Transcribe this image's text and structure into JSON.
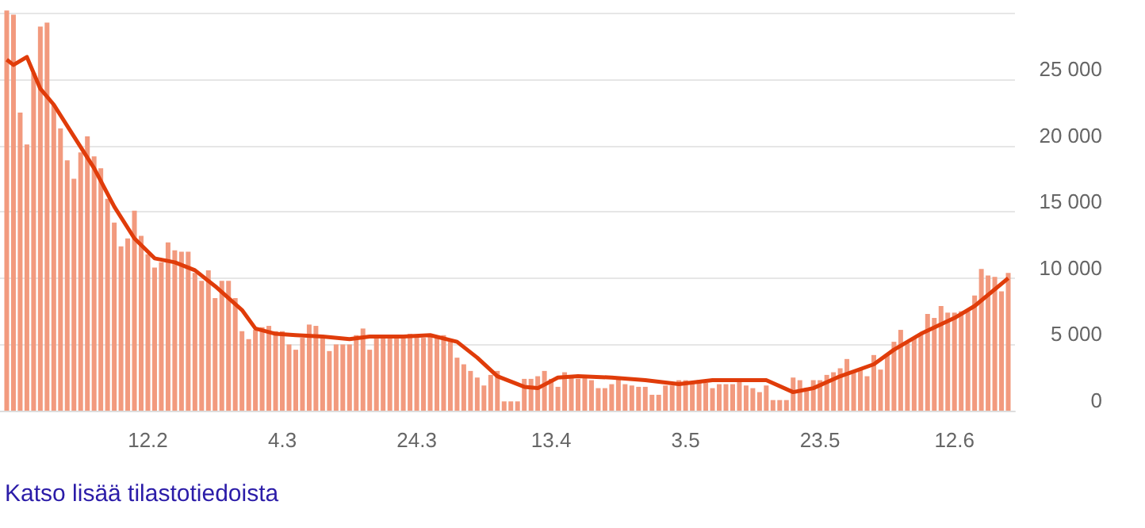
{
  "chart_data": {
    "type": "bar",
    "x": [
      "--01-22",
      "--01-23",
      "--01-24",
      "--01-25",
      "--01-26",
      "--01-27",
      "--01-28",
      "--01-29",
      "--01-30",
      "--01-31",
      "--02-01",
      "--02-02",
      "--02-03",
      "--02-04",
      "--02-05",
      "--02-06",
      "--02-07",
      "--02-08",
      "--02-09",
      "--02-10",
      "--02-11",
      "--02-12",
      "--02-13",
      "--02-14",
      "--02-15",
      "--02-16",
      "--02-17",
      "--02-18",
      "--02-19",
      "--02-20",
      "--02-21",
      "--02-22",
      "--02-23",
      "--02-24",
      "--02-25",
      "--02-26",
      "--02-27",
      "--02-28",
      "--03-01",
      "--03-02",
      "--03-03",
      "--03-04",
      "--03-05",
      "--03-06",
      "--03-07",
      "--03-08",
      "--03-09",
      "--03-10",
      "--03-11",
      "--03-12",
      "--03-13",
      "--03-14",
      "--03-15",
      "--03-16",
      "--03-17",
      "--03-18",
      "--03-19",
      "--03-20",
      "--03-21",
      "--03-22",
      "--03-23",
      "--03-24",
      "--03-25",
      "--03-26",
      "--03-27",
      "--03-28",
      "--03-29",
      "--03-30",
      "--03-31",
      "--04-01",
      "--04-02",
      "--04-03",
      "--04-04",
      "--04-05",
      "--04-06",
      "--04-07",
      "--04-08",
      "--04-09",
      "--04-10",
      "--04-11",
      "--04-12",
      "--04-13",
      "--04-14",
      "--04-15",
      "--04-16",
      "--04-17",
      "--04-18",
      "--04-19",
      "--04-20",
      "--04-21",
      "--04-22",
      "--04-23",
      "--04-24",
      "--04-25",
      "--04-26",
      "--04-27",
      "--04-28",
      "--04-29",
      "--04-30",
      "--05-01",
      "--05-02",
      "--05-03",
      "--05-04",
      "--05-05",
      "--05-06",
      "--05-07",
      "--05-08",
      "--05-09",
      "--05-10",
      "--05-11",
      "--05-12",
      "--05-13",
      "--05-14",
      "--05-15",
      "--05-16",
      "--05-17",
      "--05-18",
      "--05-19",
      "--05-20",
      "--05-21",
      "--05-22",
      "--05-23",
      "--05-24",
      "--05-25",
      "--05-26",
      "--05-27",
      "--05-28",
      "--05-29",
      "--05-30",
      "--05-31",
      "--06-01",
      "--06-02",
      "--06-03",
      "--06-04",
      "--06-05",
      "--06-06",
      "--06-07",
      "--06-08",
      "--06-09",
      "--06-10",
      "--06-11",
      "--06-12",
      "--06-13",
      "--06-14",
      "--06-15",
      "--06-16",
      "--06-17",
      "--06-18",
      "--06-19",
      "--06-20"
    ],
    "series": [
      {
        "color": "#f29a7e",
        "values": [
          30200,
          29900,
          22500,
          20100,
          25500,
          29000,
          29300,
          23100,
          21300,
          18900,
          17500,
          19500,
          20700,
          19200,
          18300,
          16000,
          14200,
          12400,
          13000,
          15100,
          13200,
          11800,
          10800,
          11200,
          12700,
          12100,
          12000,
          12000,
          10400,
          9800,
          10600,
          8500,
          9800,
          9800,
          8500,
          6000,
          5400,
          6100,
          6300,
          6400,
          6000,
          6000,
          5000,
          4600,
          5500,
          6500,
          6400,
          5600,
          4500,
          5000,
          5000,
          5000,
          5700,
          6200,
          4600,
          5500,
          5500,
          5600,
          5600,
          5700,
          5800,
          5700,
          5500,
          5700,
          5500,
          5700,
          5200,
          4000,
          3500,
          3000,
          2500,
          1900,
          2700,
          3000,
          700,
          700,
          700,
          2400,
          2400,
          2600,
          3000,
          2400,
          1800,
          2900,
          2500,
          2400,
          2600,
          2300,
          1700,
          1700,
          2000,
          2500,
          2000,
          1900,
          1800,
          1800,
          1200,
          1200,
          1900,
          1900,
          2300,
          2300,
          2200,
          2300,
          2100,
          1700,
          2000,
          2000,
          2000,
          2400,
          1900,
          1700,
          1400,
          1900,
          800,
          800,
          800,
          2500,
          2300,
          1700,
          2300,
          2300,
          2700,
          2900,
          3200,
          3900,
          3000,
          3200,
          2600,
          4200,
          3100,
          4300,
          5200,
          6100,
          5100,
          5500,
          5800,
          7300,
          7000,
          7900,
          7400,
          7400,
          7500,
          7500,
          8700,
          10700,
          10200,
          10100,
          9000,
          10400
        ]
      },
      {
        "type": "line",
        "color": "#e03c0a",
        "x": [
          "--01-22",
          "--01-23",
          "--01-25",
          "--01-27",
          "--01-29",
          "--02-01",
          "--02-04",
          "--02-07",
          "--02-10",
          "--02-13",
          "--02-16",
          "--02-19",
          "--02-22",
          "--02-26",
          "--02-28",
          "--03-03",
          "--03-06",
          "--03-10",
          "--03-14",
          "--03-17",
          "--03-22",
          "--03-26",
          "--03-30",
          "--04-02",
          "--04-05",
          "--04-09",
          "--04-11",
          "--04-14",
          "--04-17",
          "--04-22",
          "--04-27",
          "--05-02",
          "--05-07",
          "--05-11",
          "--05-15",
          "--05-19",
          "--05-22",
          "--05-26",
          "--05-31",
          "--06-03",
          "--06-07",
          "--06-12",
          "--06-15",
          "--06-20"
        ],
        "values": [
          26500,
          26100,
          26700,
          24300,
          23100,
          20700,
          18300,
          15400,
          13000,
          11500,
          11200,
          10600,
          9400,
          7600,
          6200,
          5800,
          5700,
          5600,
          5400,
          5600,
          5600,
          5700,
          5200,
          4000,
          2600,
          1800,
          1700,
          2500,
          2600,
          2500,
          2300,
          2000,
          2300,
          2300,
          2300,
          1400,
          1700,
          2600,
          3500,
          4600,
          5800,
          7000,
          7900,
          10000
        ]
      }
    ],
    "xlim": [
      "--01-21",
      "--06-21"
    ],
    "xticks": [
      {
        "value": "--02-12",
        "label": "12.2"
      },
      {
        "value": "--03-04",
        "label": "4.3"
      },
      {
        "value": "--03-24",
        "label": "24.3"
      },
      {
        "value": "--04-13",
        "label": "13.4"
      },
      {
        "value": "--05-03",
        "label": "3.5"
      },
      {
        "value": "--05-23",
        "label": "23.5"
      },
      {
        "value": "--06-12",
        "label": "12.6"
      }
    ],
    "ylim": [
      0,
      31000
    ],
    "yticks": [
      {
        "value": 0,
        "label": "0"
      },
      {
        "value": 5000,
        "label": "5 000"
      },
      {
        "value": 10000,
        "label": "10 000"
      },
      {
        "value": 15000,
        "label": "15 000"
      },
      {
        "value": 20000,
        "label": "20 000"
      },
      {
        "value": 25000,
        "label": "25 000"
      },
      {
        "value": 30000,
        "label": null
      }
    ],
    "grid": "y",
    "marker": "none",
    "annotations": [
      "Katso lisää tilastotiedoista"
    ]
  }
}
